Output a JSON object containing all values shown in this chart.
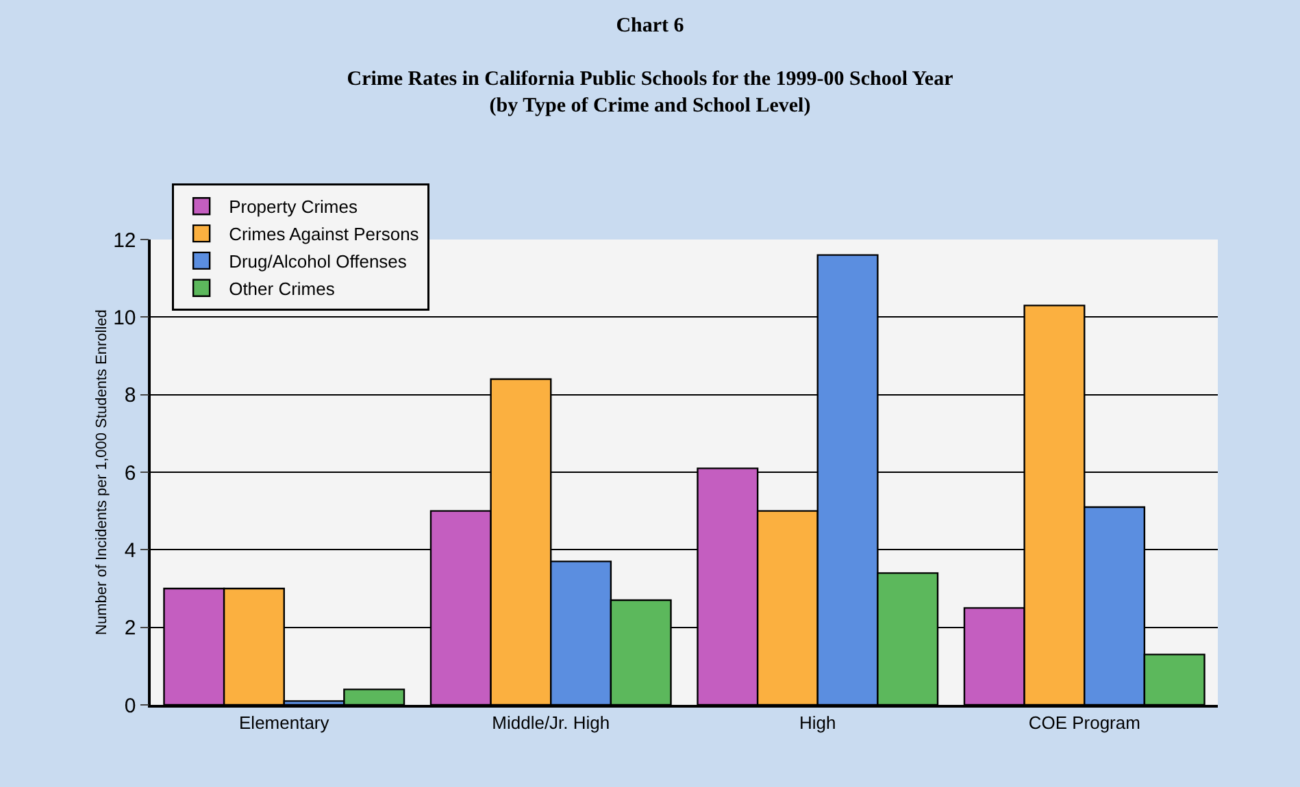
{
  "chart_data": {
    "type": "bar",
    "title": "Chart 6",
    "subtitle": "Crime Rates in California Public Schools for the 1999-00 School Year\n(by Type of Crime and School Level)",
    "ylabel": "Number of Incidents per 1,000 Students Enrolled",
    "categories": [
      "Elementary",
      "Middle/Jr. High",
      "High",
      "COE Program"
    ],
    "series": [
      {
        "name": "Property Crimes",
        "color": "#c45ec0",
        "values": [
          3.0,
          5.0,
          6.1,
          2.5
        ]
      },
      {
        "name": "Crimes Against Persons",
        "color": "#fbb040",
        "values": [
          3.0,
          8.4,
          5.0,
          10.3
        ]
      },
      {
        "name": "Drug/Alcohol Offenses",
        "color": "#5b8ee0",
        "values": [
          0.1,
          3.7,
          11.6,
          5.1
        ]
      },
      {
        "name": "Other Crimes",
        "color": "#5cb85c",
        "values": [
          0.4,
          2.7,
          3.4,
          1.3
        ]
      }
    ],
    "ylim": [
      0,
      12
    ],
    "yticks": [
      0,
      2,
      4,
      6,
      8,
      10,
      12
    ],
    "grid": "y",
    "legend": "top left"
  }
}
